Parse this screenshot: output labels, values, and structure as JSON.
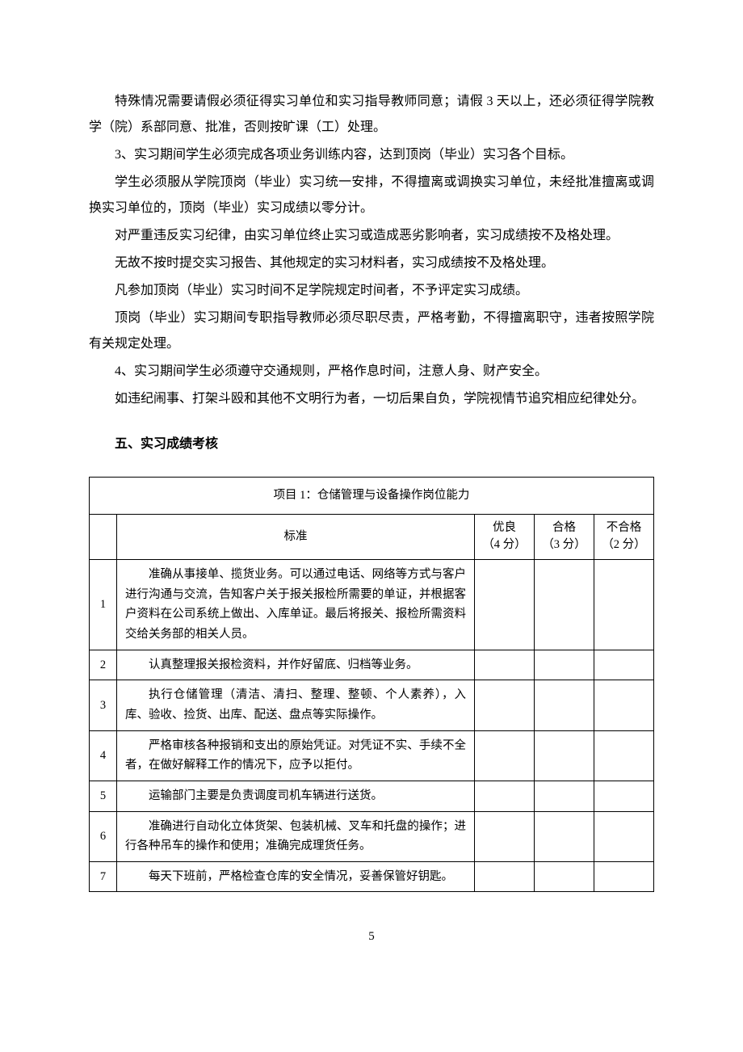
{
  "paragraphs": {
    "p1": "特殊情况需要请假必须征得实习单位和实习指导教师同意；请假 3 天以上，还必须征得学院教学（院）系部同意、批准，否则按旷课（工）处理。",
    "p2": "3、实习期间学生必须完成各项业务训练内容，达到顶岗（毕业）实习各个目标。",
    "p3": "学生必须服从学院顶岗（毕业）实习统一安排，不得擅离或调换实习单位，未经批准擅离或调换实习单位的，顶岗（毕业）实习成绩以零分计。",
    "p4": "对严重违反实习纪律，由实习单位终止实习或造成恶劣影响者，实习成绩按不及格处理。",
    "p5": "无故不按时提交实习报告、其他规定的实习材料者，实习成绩按不及格处理。",
    "p6": "凡参加顶岗（毕业）实习时间不足学院规定时间者，不予评定实习成绩。",
    "p7": "顶岗（毕业）实习期间专职指导教师必须尽职尽责，严格考勤，不得擅离职守，违者按照学院有关规定处理。",
    "p8": "4、实习期间学生必须遵守交通规则，严格作息时间，注意人身、财产安全。",
    "p9": "如违纪闹事、打架斗殴和其他不文明行为者，一切后果自负，学院视情节追究相应纪律处分。"
  },
  "sectionHeading": "五、实习成绩考核",
  "table": {
    "title": "项目 1：仓储管理与设备操作岗位能力",
    "headers": {
      "standard": "标准",
      "excellent_label": "优良",
      "excellent_score": "（4 分）",
      "pass_label": "合格",
      "pass_score": "（3 分）",
      "fail_label": "不合格",
      "fail_score": "（2 分）"
    },
    "rows": [
      {
        "num": "1",
        "standard": "准确从事接单、揽货业务。可以通过电话、网络等方式与客户进行沟通与交流，告知客户关于报关报检所需要的单证，并根据客户资料在公司系统上做出、入库单证。最后将报关、报检所需资料交给关务部的相关人员。"
      },
      {
        "num": "2",
        "standard": "认真整理报关报检资料，并作好留底、归档等业务。"
      },
      {
        "num": "3",
        "standard": "执行仓储管理（清洁、清扫、整理、整顿、个人素养），入库、验收、捡货、出库、配送、盘点等实际操作。"
      },
      {
        "num": "4",
        "standard": "严格审核各种报销和支出的原始凭证。对凭证不实、手续不全者，在做好解释工作的情况下，应予以拒付。"
      },
      {
        "num": "5",
        "standard": "运输部门主要是负责调度司机车辆进行送货。"
      },
      {
        "num": "6",
        "standard": "准确进行自动化立体货架、包装机械、叉车和托盘的操作；进行各种吊车的操作和使用；准确完成理货任务。"
      },
      {
        "num": "7",
        "standard": "每天下班前，严格检查仓库的安全情况，妥善保管好钥匙。"
      }
    ]
  },
  "pageNumber": "5"
}
